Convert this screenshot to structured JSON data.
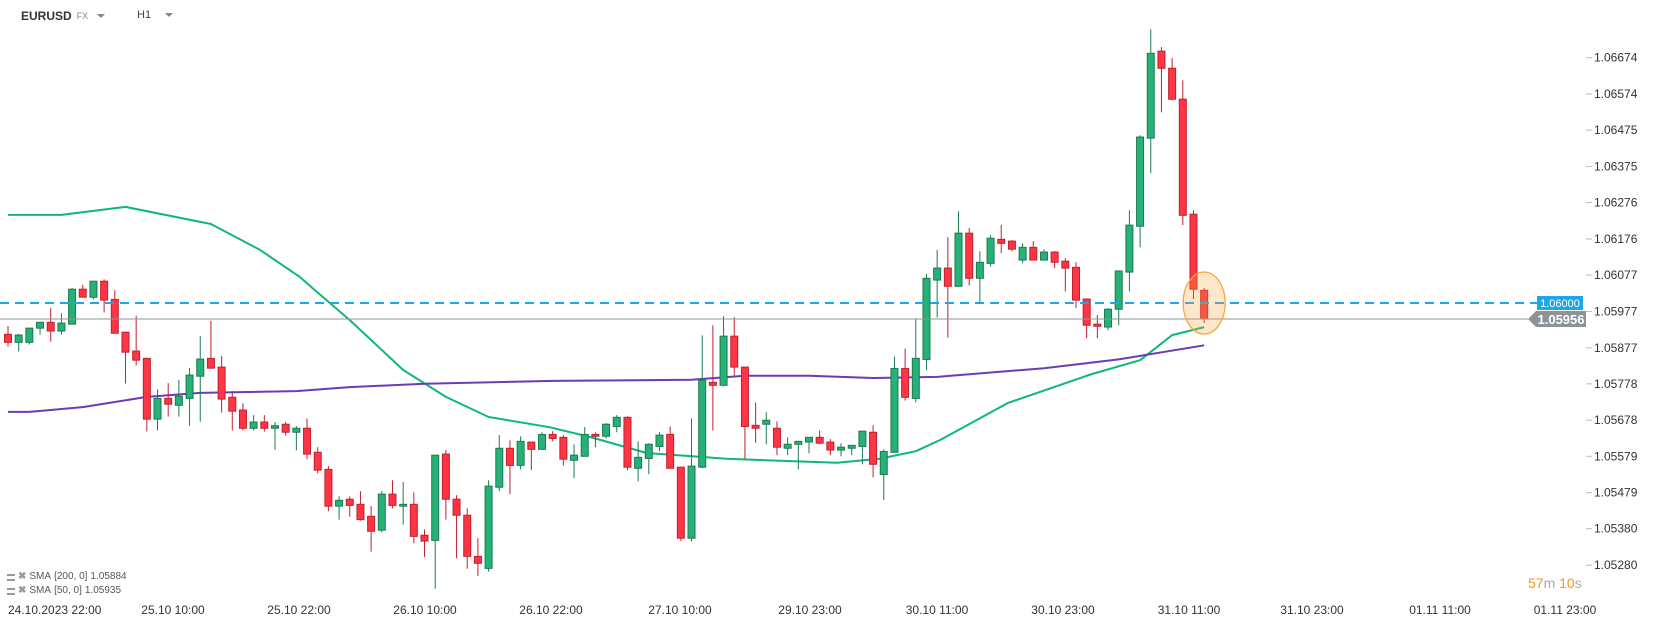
{
  "header": {
    "symbol": "EURUSD",
    "market": "FX",
    "timeframe": "H1"
  },
  "legend": [
    {
      "label": "SMA",
      "params": "[200,  0]",
      "value": "1.05884"
    },
    {
      "label": "SMA",
      "params": "[50,  0]",
      "value": "1.05935"
    }
  ],
  "timer": {
    "minutes": "57",
    "m": "m",
    "seconds": "10",
    "s": "s"
  },
  "colors": {
    "up": "#26b276",
    "up_border": "#1b7a52",
    "down": "#fd3545",
    "down_border": "#c1202e",
    "sma50": "#10b67b",
    "sma200": "#6a3db8",
    "alert_line": "#1ea7e8",
    "price_tag": "#8c9497",
    "highlight": "#f7a541"
  },
  "chart_data": {
    "type": "candlestick",
    "title": "EURUSD H1",
    "ylim": [
      1.0518,
      1.0676
    ],
    "y_ticks": [
      "1.06674",
      "1.06574",
      "1.06475",
      "1.06375",
      "1.06276",
      "1.06176",
      "1.06077",
      "1.05977",
      "1.05877",
      "1.05778",
      "1.05678",
      "1.05579",
      "1.05479",
      "1.05380",
      "1.05280"
    ],
    "x_ticks": [
      "24.10.2023  22:00",
      "25.10  10:00",
      "25.10  22:00",
      "26.10  10:00",
      "26.10  22:00",
      "27.10  10:00",
      "29.10  23:00",
      "30.10  11:00",
      "30.10  23:00",
      "31.10  11:00",
      "31.10  23:00",
      "01.11  11:00",
      "01.11  23:00"
    ],
    "alert_level": {
      "value": 1.06,
      "label": "1.06000"
    },
    "current_price": {
      "value": 1.05956,
      "label": "1.05956"
    },
    "ohlc": [
      [
        1.05914,
        1.05937,
        1.0588,
        1.05892
      ],
      [
        1.05892,
        1.05915,
        1.05867,
        1.05912
      ],
      [
        1.05892,
        1.05931,
        1.05886,
        1.05931
      ],
      [
        1.05931,
        1.05947,
        1.05913,
        1.05947
      ],
      [
        1.05947,
        1.05986,
        1.05894,
        1.05923
      ],
      [
        1.05923,
        1.05972,
        1.05913,
        1.05945
      ],
      [
        1.05942,
        1.06041,
        1.05942,
        1.06038
      ],
      [
        1.06038,
        1.0605,
        1.06016,
        1.06016
      ],
      [
        1.06016,
        1.0606,
        1.0601,
        1.0606
      ],
      [
        1.0606,
        1.06065,
        1.05974,
        1.06008
      ],
      [
        1.0601,
        1.06035,
        1.05917,
        1.05917
      ],
      [
        1.0592,
        1.0592,
        1.05779,
        1.05865
      ],
      [
        1.05868,
        1.05965,
        1.05828,
        1.05843
      ],
      [
        1.05848,
        1.05848,
        1.05647,
        1.05681
      ],
      [
        1.05681,
        1.05763,
        1.0565,
        1.05738
      ],
      [
        1.05738,
        1.0578,
        1.05688,
        1.05722
      ],
      [
        1.05719,
        1.05789,
        1.05688,
        1.05744
      ],
      [
        1.05738,
        1.05822,
        1.05663,
        1.05802
      ],
      [
        1.05799,
        1.05909,
        1.05674,
        1.05846
      ],
      [
        1.05848,
        1.05951,
        1.05821,
        1.05821
      ],
      [
        1.05824,
        1.05854,
        1.05699,
        1.05736
      ],
      [
        1.05741,
        1.05758,
        1.0565,
        1.05703
      ],
      [
        1.05706,
        1.05725,
        1.0565,
        1.05656
      ],
      [
        1.05656,
        1.05692,
        1.0565,
        1.05673
      ],
      [
        1.05673,
        1.05692,
        1.05647,
        1.05656
      ],
      [
        1.05656,
        1.05673,
        1.05597,
        1.05663
      ],
      [
        1.05667,
        1.05673,
        1.05636,
        1.05645
      ],
      [
        1.05645,
        1.05662,
        1.05595,
        1.05656
      ],
      [
        1.05656,
        1.05683,
        1.05571,
        1.05585
      ],
      [
        1.0559,
        1.05604,
        1.05532,
        1.05541
      ],
      [
        1.05543,
        1.05552,
        1.05428,
        1.05442
      ],
      [
        1.05442,
        1.05469,
        1.05405,
        1.05458
      ],
      [
        1.05461,
        1.05469,
        1.05413,
        1.05444
      ],
      [
        1.05447,
        1.05483,
        1.05402,
        1.05405
      ],
      [
        1.05414,
        1.05442,
        1.05317,
        1.05373
      ],
      [
        1.05376,
        1.05483,
        1.0537,
        1.05475
      ],
      [
        1.05475,
        1.05513,
        1.05436,
        1.05444
      ],
      [
        1.05442,
        1.05508,
        1.05391,
        1.05447
      ],
      [
        1.05447,
        1.0548,
        1.0534,
        1.05359
      ],
      [
        1.05362,
        1.05378,
        1.05302,
        1.05346
      ],
      [
        1.05348,
        1.05582,
        1.05215,
        1.05582
      ],
      [
        1.05585,
        1.05596,
        1.05405,
        1.05461
      ],
      [
        1.05461,
        1.05472,
        1.05299,
        1.05417
      ],
      [
        1.05417,
        1.05436,
        1.0527,
        1.05304
      ],
      [
        1.05304,
        1.05354,
        1.0525,
        1.05285
      ],
      [
        1.05271,
        1.05513,
        1.05262,
        1.05497
      ],
      [
        1.05494,
        1.05637,
        1.05483,
        1.05601
      ],
      [
        1.05601,
        1.05623,
        1.05475,
        1.05554
      ],
      [
        1.05554,
        1.05634,
        1.05543,
        1.0562
      ],
      [
        1.05618,
        1.05618,
        1.05541,
        1.05598
      ],
      [
        1.05598,
        1.05645,
        1.05598,
        1.05639
      ],
      [
        1.05639,
        1.05648,
        1.0562,
        1.05628
      ],
      [
        1.05631,
        1.05637,
        1.05554,
        1.05571
      ],
      [
        1.05568,
        1.05612,
        1.05519,
        1.05582
      ],
      [
        1.05579,
        1.05659,
        1.05579,
        1.05639
      ],
      [
        1.05639,
        1.05645,
        1.05604,
        1.05634
      ],
      [
        1.05634,
        1.0567,
        1.05628,
        1.05667
      ],
      [
        1.05661,
        1.05692,
        1.05645,
        1.05686
      ],
      [
        1.05686,
        1.05689,
        1.05541,
        1.05549
      ],
      [
        1.05546,
        1.0562,
        1.0551,
        1.05576
      ],
      [
        1.05573,
        1.05615,
        1.0553,
        1.05612
      ],
      [
        1.05606,
        1.05645,
        1.05593,
        1.05637
      ],
      [
        1.05639,
        1.05661,
        1.05546,
        1.05546
      ],
      [
        1.05549,
        1.05551,
        1.05346,
        1.05354
      ],
      [
        1.05354,
        1.05683,
        1.05345,
        1.05552
      ],
      [
        1.05549,
        1.05911,
        1.05546,
        1.05788
      ],
      [
        1.05782,
        1.05939,
        1.0565,
        1.05774
      ],
      [
        1.05774,
        1.05964,
        1.05771,
        1.05909
      ],
      [
        1.05909,
        1.05961,
        1.05799,
        1.05824
      ],
      [
        1.05824,
        1.05824,
        1.05571,
        1.05661
      ],
      [
        1.05664,
        1.05727,
        1.05616,
        1.05656
      ],
      [
        1.05667,
        1.057,
        1.05612,
        1.05678
      ],
      [
        1.05656,
        1.05675,
        1.05582,
        1.05604
      ],
      [
        1.05601,
        1.05631,
        1.05582,
        1.05612
      ],
      [
        1.05612,
        1.0562,
        1.05543,
        1.0562
      ],
      [
        1.05618,
        1.05631,
        1.05587,
        1.05631
      ],
      [
        1.05631,
        1.0565,
        1.05612,
        1.05615
      ],
      [
        1.05618,
        1.05626,
        1.05582,
        1.05596
      ],
      [
        1.05596,
        1.05615,
        1.05579,
        1.05604
      ],
      [
        1.05601,
        1.05609,
        1.05582,
        1.05609
      ],
      [
        1.05606,
        1.05648,
        1.05557,
        1.05648
      ],
      [
        1.05645,
        1.05664,
        1.05521,
        1.05557
      ],
      [
        1.05529,
        1.05598,
        1.05459,
        1.05592
      ],
      [
        1.0559,
        1.05853,
        1.0559,
        1.0582
      ],
      [
        1.0582,
        1.05875,
        1.05732,
        1.05741
      ],
      [
        1.05738,
        1.05958,
        1.05727,
        1.05848
      ],
      [
        1.05845,
        1.0608,
        1.05815,
        1.06068
      ],
      [
        1.06063,
        1.06146,
        1.0596,
        1.06096
      ],
      [
        1.06096,
        1.06181,
        1.05905,
        1.06046
      ],
      [
        1.06046,
        1.06252,
        1.06046,
        1.06192
      ],
      [
        1.06192,
        1.06206,
        1.06048,
        1.06068
      ],
      [
        1.06068,
        1.06142,
        1.05998,
        1.06112
      ],
      [
        1.06109,
        1.06186,
        1.061,
        1.06178
      ],
      [
        1.06175,
        1.06215,
        1.06137,
        1.06164
      ],
      [
        1.0617,
        1.06173,
        1.06142,
        1.06148
      ],
      [
        1.06118,
        1.06164,
        1.06109,
        1.06153
      ],
      [
        1.06153,
        1.0617,
        1.06118,
        1.06118
      ],
      [
        1.06118,
        1.06148,
        1.06118,
        1.0614
      ],
      [
        1.0614,
        1.06143,
        1.06096,
        1.06112
      ],
      [
        1.06115,
        1.06123,
        1.06032,
        1.06096
      ],
      [
        1.06098,
        1.06112,
        1.05986,
        1.06008
      ],
      [
        1.06011,
        1.06011,
        1.05903,
        1.05939
      ],
      [
        1.05942,
        1.05967,
        1.05903,
        1.05936
      ],
      [
        1.05934,
        1.05986,
        1.05925,
        1.05983
      ],
      [
        1.05983,
        1.0609,
        1.05939,
        1.06088
      ],
      [
        1.06085,
        1.06255,
        1.06032,
        1.06214
      ],
      [
        1.06211,
        1.06461,
        1.06153,
        1.06456
      ],
      [
        1.06453,
        1.06752,
        1.06357,
        1.06686
      ],
      [
        1.06692,
        1.06703,
        1.06524,
        1.06645
      ],
      [
        1.06645,
        1.06673,
        1.06557,
        1.0656
      ],
      [
        1.0656,
        1.06612,
        1.06214,
        1.06241
      ],
      [
        1.06244,
        1.06255,
        1.06011,
        1.06038
      ],
      [
        1.06035,
        1.06041,
        1.05945,
        1.05956
      ]
    ],
    "series": [
      {
        "name": "SMA 50",
        "points": [
          [
            0,
            1.06242
          ],
          [
            5,
            1.06242
          ],
          [
            11,
            1.06264
          ],
          [
            19,
            1.06217
          ],
          [
            23.6,
            1.06146
          ],
          [
            27.3,
            1.06072
          ],
          [
            28.7,
            1.06036
          ],
          [
            32,
            1.05953
          ],
          [
            37,
            1.05816
          ],
          [
            41,
            1.05742
          ],
          [
            45,
            1.05687
          ],
          [
            50.7,
            1.05659
          ],
          [
            54.5,
            1.05632
          ],
          [
            59.8,
            1.05588
          ],
          [
            67.3,
            1.05572
          ],
          [
            77.6,
            1.05561
          ],
          [
            81.6,
            1.05572
          ],
          [
            85,
            1.05593
          ],
          [
            87.3,
            1.05624
          ],
          [
            93.6,
            1.05725
          ],
          [
            101.5,
            1.05805
          ],
          [
            106,
            1.05843
          ],
          [
            109,
            1.05912
          ],
          [
            112,
            1.05934
          ]
        ]
      },
      {
        "name": "SMA 200",
        "points": [
          [
            0,
            1.05701
          ],
          [
            2,
            1.05701
          ],
          [
            7,
            1.05714
          ],
          [
            13,
            1.05742
          ],
          [
            18,
            1.05753
          ],
          [
            27,
            1.05758
          ],
          [
            32,
            1.05769
          ],
          [
            39,
            1.05778
          ],
          [
            51,
            1.05786
          ],
          [
            64,
            1.05789
          ],
          [
            69,
            1.058
          ],
          [
            75,
            1.058
          ],
          [
            81,
            1.05794
          ],
          [
            87,
            1.05797
          ],
          [
            97,
            1.05821
          ],
          [
            104,
            1.05845
          ],
          [
            112,
            1.05884
          ]
        ]
      }
    ],
    "highlight_candle_index": 112
  }
}
